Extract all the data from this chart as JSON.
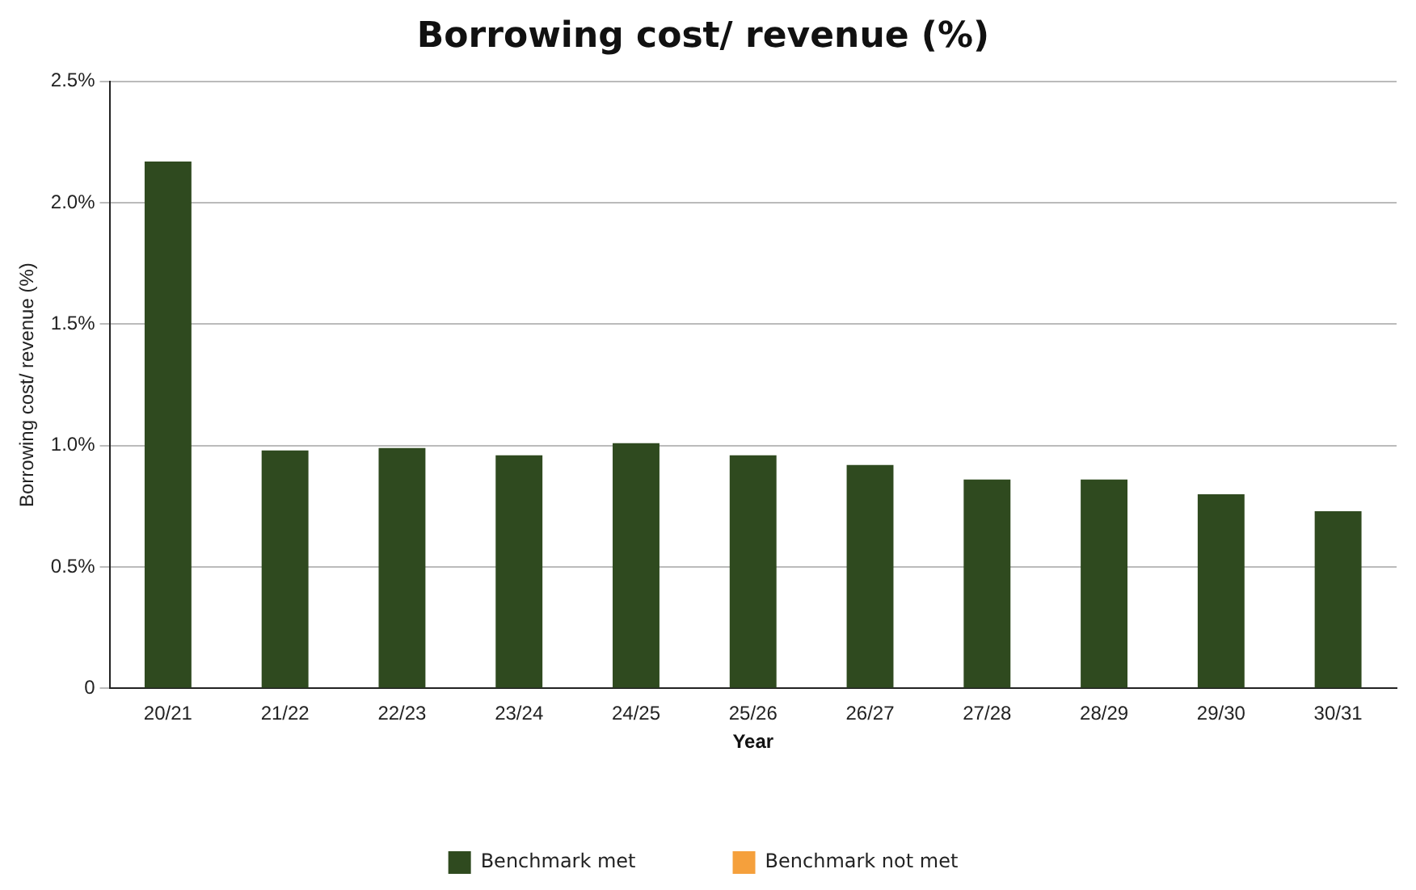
{
  "chart_data": {
    "type": "bar",
    "title": "Borrowing cost/ revenue (%)",
    "xlabel": "Year",
    "ylabel": "Borrowing cost/ revenue (%)",
    "categories": [
      "20/21",
      "21/22",
      "22/23",
      "23/24",
      "24/25",
      "25/26",
      "26/27",
      "27/28",
      "28/29",
      "29/30",
      "30/31"
    ],
    "series": [
      {
        "name": "Benchmark met",
        "color": "#2f4a1f",
        "values": [
          2.17,
          0.98,
          0.99,
          0.96,
          1.01,
          0.96,
          0.92,
          0.86,
          0.86,
          0.8,
          0.73
        ]
      },
      {
        "name": "Benchmark not met",
        "color": "#f5a03c",
        "values": [
          null,
          null,
          null,
          null,
          null,
          null,
          null,
          null,
          null,
          null,
          null
        ]
      }
    ],
    "ylim": [
      0,
      2.5
    ],
    "yticks": [
      {
        "value": 0,
        "label": "0"
      },
      {
        "value": 0.5,
        "label": "0.5%"
      },
      {
        "value": 1,
        "label": "1.0%"
      },
      {
        "value": 1.5,
        "label": "1.5%"
      },
      {
        "value": 2,
        "label": "2.0%"
      },
      {
        "value": 2.5,
        "label": "2.5%"
      }
    ],
    "grid": "y",
    "legend": "bottom"
  }
}
